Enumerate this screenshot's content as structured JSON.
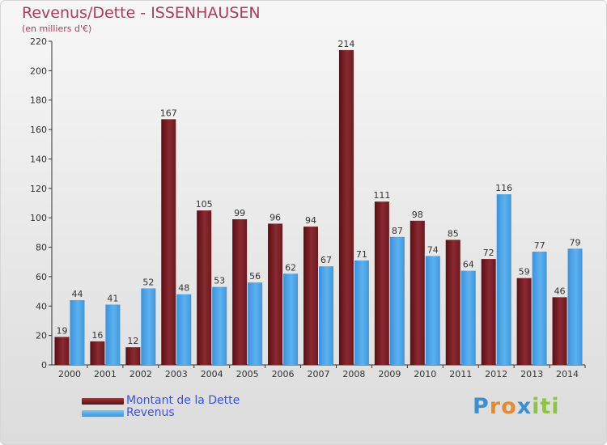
{
  "chart_data": {
    "type": "bar",
    "title": "Revenus/Dette - ISSENHAUSEN",
    "subtitle": "(en milliers d'€)",
    "categories": [
      "2000",
      "2001",
      "2002",
      "2003",
      "2004",
      "2005",
      "2006",
      "2007",
      "2008",
      "2009",
      "2010",
      "2011",
      "2012",
      "2013",
      "2014"
    ],
    "series": [
      {
        "name": "Montant de la Dette",
        "color": "#7a1f24",
        "values": [
          19,
          16,
          12,
          167,
          105,
          99,
          96,
          94,
          214,
          111,
          98,
          85,
          72,
          59,
          46
        ]
      },
      {
        "name": "Revenus",
        "color": "#4aa3e6",
        "values": [
          44,
          41,
          52,
          48,
          53,
          56,
          62,
          67,
          71,
          87,
          74,
          64,
          116,
          77,
          79
        ]
      }
    ],
    "yticks": [
      0,
      20,
      40,
      60,
      80,
      100,
      120,
      140,
      160,
      180,
      200,
      220
    ],
    "ylim": [
      0,
      220
    ],
    "grid": false,
    "legend_position": "bottom-left"
  },
  "brand": {
    "letters": [
      "P",
      "r",
      "o",
      "x",
      "i",
      "t",
      "i"
    ],
    "colors": [
      "#3b8fd6",
      "#e8892b",
      "#e8892b",
      "#3b8fd6",
      "#8cc63f",
      "#8cc63f",
      "#8cc63f"
    ]
  }
}
